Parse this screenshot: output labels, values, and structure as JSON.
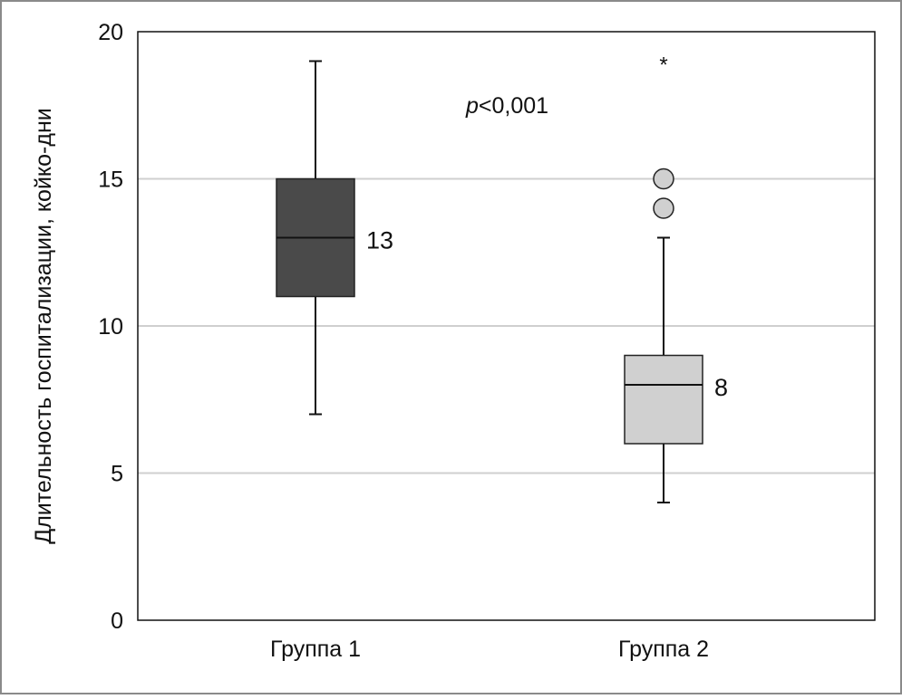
{
  "chart_data": {
    "type": "boxplot",
    "title": "",
    "xlabel": "",
    "ylabel": "Длительность госпитализации, койко-дни",
    "ylim": [
      0,
      20
    ],
    "yticks": [
      0,
      5,
      10,
      15,
      20
    ],
    "grid": true,
    "annotation": {
      "italic": "p",
      "rest": "<0,001"
    },
    "categories": [
      "Группа 1",
      "Группа 2"
    ],
    "series": [
      {
        "name": "Группа 1",
        "min": 7,
        "q1": 11,
        "median": 13,
        "q3": 15,
        "max": 19,
        "median_label": "13",
        "outliers": [],
        "extremes": [],
        "color": "#4a4a4a"
      },
      {
        "name": "Группа 2",
        "min": 4,
        "q1": 6,
        "median": 8,
        "q3": 9,
        "max": 13,
        "median_label": "8",
        "outliers": [
          14,
          15
        ],
        "extremes": [
          19
        ],
        "color": "#d0d0d0"
      }
    ]
  }
}
